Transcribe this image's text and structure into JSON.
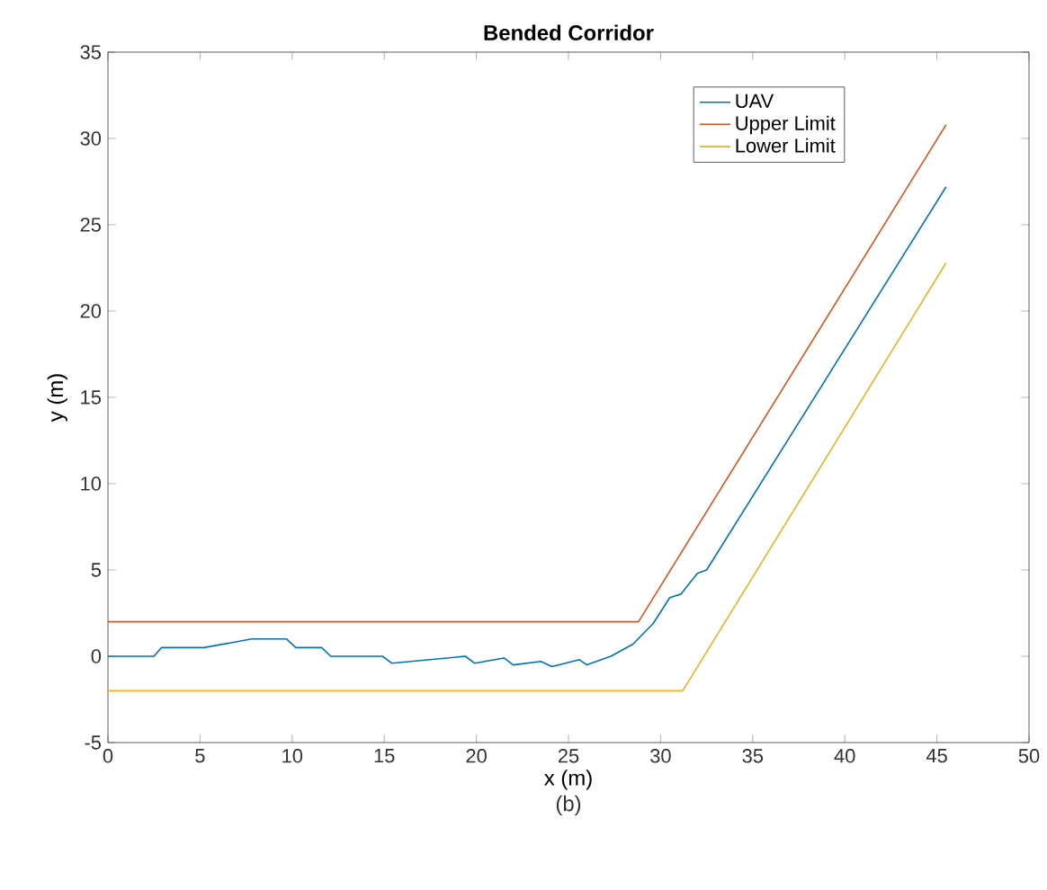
{
  "chart_data": {
    "type": "line",
    "title": "Bended Corridor",
    "xlabel": "x (m)",
    "ylabel": "y (m)",
    "annotations": [
      "(b)"
    ],
    "xlim": [
      0,
      50
    ],
    "ylim": [
      -5,
      35
    ],
    "xticks": [
      0,
      5,
      10,
      15,
      20,
      25,
      30,
      35,
      40,
      45,
      50
    ],
    "yticks": [
      -5,
      0,
      5,
      10,
      15,
      20,
      25,
      30,
      35
    ],
    "legend": "top right",
    "grid": false,
    "marker": "none",
    "line_style": "solid",
    "series": [
      {
        "name": "UAV",
        "color": "#0072bd",
        "x": [
          0,
          2.5,
          2.9,
          5.2,
          7.8,
          9.7,
          10.2,
          11.6,
          12.1,
          14.9,
          15.4,
          19.4,
          19.9,
          21.5,
          22.0,
          23.5,
          24.1,
          25.6,
          26.0,
          27.3,
          28.5,
          29.6,
          30.5,
          31.1,
          32.0,
          32.5,
          45.5
        ],
        "values": [
          0,
          0,
          0.5,
          0.5,
          1.0,
          1.0,
          0.5,
          0.5,
          0,
          0,
          -0.4,
          0,
          -0.4,
          -0.1,
          -0.5,
          -0.3,
          -0.6,
          -0.2,
          -0.5,
          0,
          0.7,
          1.9,
          3.4,
          3.6,
          4.8,
          5.0,
          27.2
        ]
      },
      {
        "name": "Upper Limit",
        "color": "#d95319",
        "x": [
          0,
          28.8,
          45.5
        ],
        "values": [
          2,
          2,
          30.8
        ]
      },
      {
        "name": "Lower Limit",
        "color": "#edb120",
        "x": [
          0,
          31.2,
          45.5
        ],
        "values": [
          -2,
          -2,
          22.8
        ]
      }
    ]
  }
}
